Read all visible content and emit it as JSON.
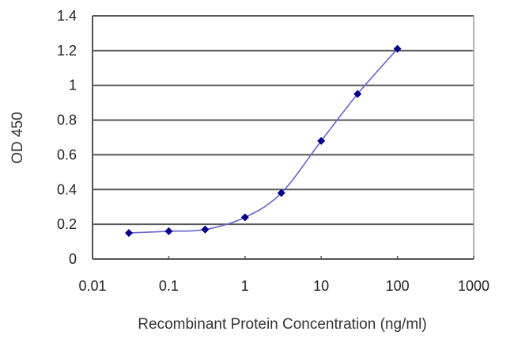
{
  "chart_data": {
    "type": "line",
    "title": "",
    "xlabel": "Recombinant Protein Concentration (ng/ml)",
    "ylabel": "OD 450",
    "x_scale": "log",
    "xlim": [
      0.01,
      1000
    ],
    "ylim": [
      0,
      1.4
    ],
    "x_ticks": [
      "0.01",
      "0.1",
      "1",
      "10",
      "100",
      "1000"
    ],
    "y_ticks": [
      "0",
      "0.2",
      "0.4",
      "0.6",
      "0.8",
      "1",
      "1.2",
      "1.4"
    ],
    "grid": {
      "horizontal": true,
      "vertical": false
    },
    "legend": null,
    "series": [
      {
        "name": "OD 450",
        "color": "#00008b",
        "line_color": "#6666cc",
        "marker": "diamond",
        "x": [
          0.03,
          0.1,
          0.3,
          1,
          3,
          10,
          30,
          100
        ],
        "y": [
          0.15,
          0.16,
          0.17,
          0.24,
          0.38,
          0.68,
          0.95,
          1.21
        ]
      }
    ]
  },
  "colors": {
    "grid": "#555555",
    "axis": "#555555",
    "marker": "#00008b",
    "line": "#6666cc"
  }
}
